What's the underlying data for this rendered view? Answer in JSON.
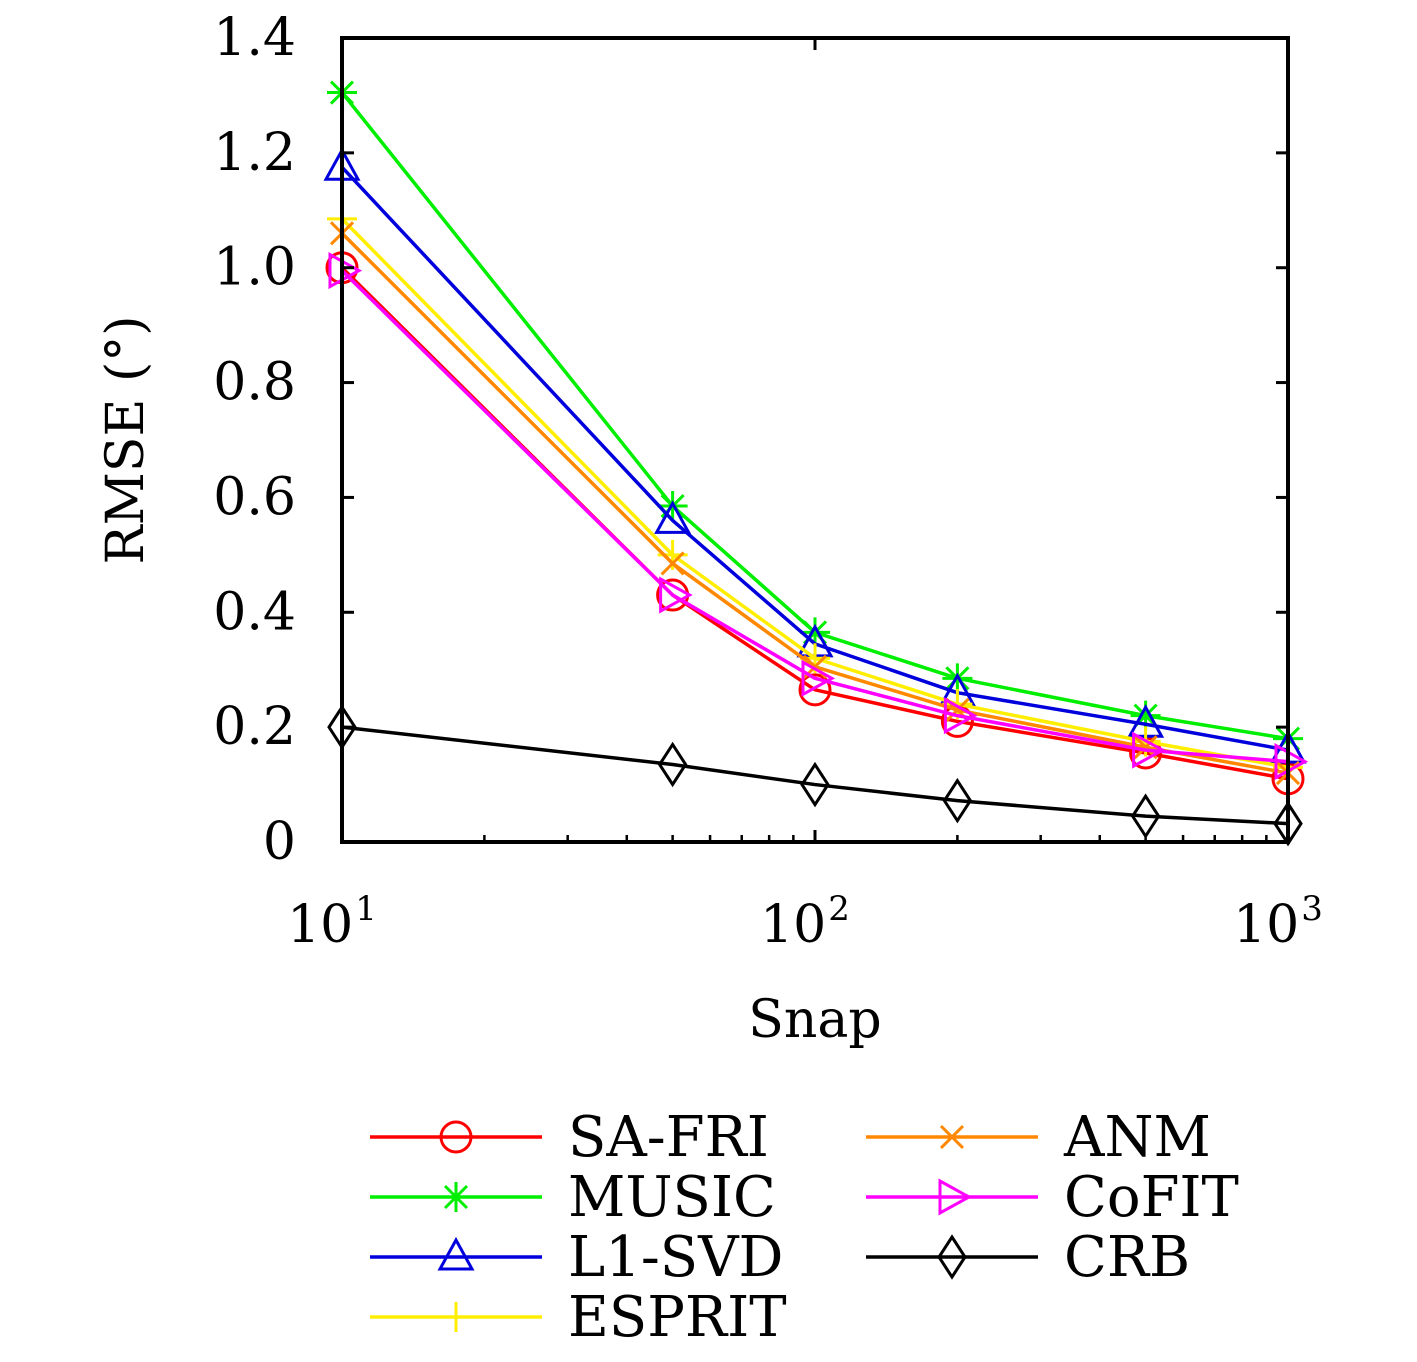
{
  "chart_data": {
    "type": "line",
    "title": "",
    "xlabel": "Snap",
    "ylabel": "RMSE (°)",
    "x_scale": "log",
    "xlim": [
      10,
      1000
    ],
    "ylim": [
      0,
      1.4
    ],
    "grid": false,
    "legend_position": "bottom",
    "x_ticks": [
      {
        "value": 10,
        "base": "10",
        "exp": "1"
      },
      {
        "value": 100,
        "base": "10",
        "exp": "2"
      },
      {
        "value": 1000,
        "base": "10",
        "exp": "3"
      }
    ],
    "y_ticks": [
      {
        "value": 0,
        "label": "0"
      },
      {
        "value": 0.2,
        "label": "0.2"
      },
      {
        "value": 0.4,
        "label": "0.4"
      },
      {
        "value": 0.6,
        "label": "0.6"
      },
      {
        "value": 0.8,
        "label": "0.8"
      },
      {
        "value": 1.0,
        "label": "1.0"
      },
      {
        "value": 1.2,
        "label": "1.2"
      },
      {
        "value": 1.4,
        "label": "1.4"
      }
    ],
    "x": [
      10,
      50,
      100,
      200,
      500,
      1000
    ],
    "series": [
      {
        "name": "SA-FRI",
        "color": "#ff0000",
        "marker": "circle",
        "values": [
          1.0,
          0.43,
          0.265,
          0.21,
          0.155,
          0.11
        ]
      },
      {
        "name": "MUSIC",
        "color": "#00ee00",
        "marker": "asterisk",
        "values": [
          1.305,
          0.585,
          0.365,
          0.285,
          0.22,
          0.18
        ]
      },
      {
        "name": "L1-SVD",
        "color": "#0000dd",
        "marker": "triangle",
        "values": [
          1.175,
          0.56,
          0.345,
          0.26,
          0.205,
          0.16
        ]
      },
      {
        "name": "ESPRIT",
        "color": "#ffee00",
        "marker": "plus",
        "values": [
          1.085,
          0.5,
          0.32,
          0.24,
          0.175,
          0.13
        ]
      },
      {
        "name": "ANM",
        "color": "#ff8800",
        "marker": "cross",
        "values": [
          1.06,
          0.485,
          0.305,
          0.23,
          0.165,
          0.12
        ]
      },
      {
        "name": "CoFIT",
        "color": "#ff00ff",
        "marker": "triangle-right",
        "values": [
          0.995,
          0.43,
          0.285,
          0.22,
          0.16,
          0.14
        ]
      },
      {
        "name": "CRB",
        "color": "#000000",
        "marker": "diamond",
        "values": [
          0.2,
          0.135,
          0.1,
          0.072,
          0.045,
          0.032
        ]
      }
    ]
  }
}
